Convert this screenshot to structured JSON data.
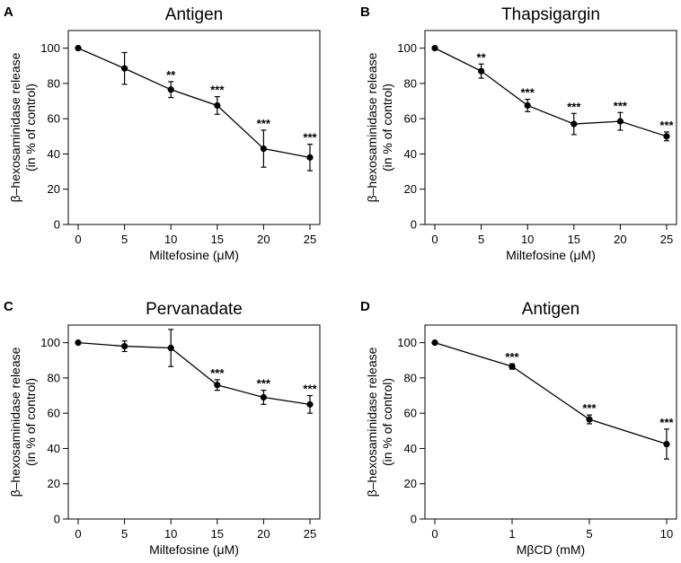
{
  "chart_data": [
    {
      "panel": "A",
      "type": "line",
      "title": "Antigen",
      "xlabel": "Miltefosine (μM)",
      "ylabel": [
        "β–hexosaminidase release",
        "(in % of control)"
      ],
      "x": [
        "0",
        "5",
        "10",
        "15",
        "20",
        "25"
      ],
      "values": [
        100,
        88.5,
        76.5,
        67.5,
        43,
        38
      ],
      "err": [
        0,
        9,
        4.5,
        5,
        10.5,
        7.5
      ],
      "sig": [
        "",
        "",
        "**",
        "***",
        "***",
        "***"
      ],
      "ylim": [
        0,
        110
      ],
      "yticks": [
        0,
        20,
        40,
        60,
        80,
        100
      ]
    },
    {
      "panel": "B",
      "type": "line",
      "title": "Thapsigargin",
      "xlabel": "Miltefosine (μM)",
      "ylabel": [
        "β–hexosaminidase release",
        "(in % of control)"
      ],
      "x": [
        "0",
        "5",
        "10",
        "15",
        "20",
        "25"
      ],
      "values": [
        100,
        87,
        67.5,
        57,
        58.5,
        50
      ],
      "err": [
        0,
        4,
        3.5,
        6,
        5,
        2.5
      ],
      "sig": [
        "",
        "**",
        "***",
        "***",
        "***",
        "***"
      ],
      "ylim": [
        0,
        110
      ],
      "yticks": [
        0,
        20,
        40,
        60,
        80,
        100
      ]
    },
    {
      "panel": "C",
      "type": "line",
      "title": "Pervanadate",
      "xlabel": "Miltefosine (μM)",
      "ylabel": [
        "β–hexosaminidase release",
        "(in % of control)"
      ],
      "x": [
        "0",
        "5",
        "10",
        "15",
        "20",
        "25"
      ],
      "values": [
        100,
        98,
        97,
        76,
        69,
        65
      ],
      "err": [
        0,
        3,
        10.5,
        3,
        4,
        5
      ],
      "sig": [
        "",
        "",
        "",
        "***",
        "***",
        "***"
      ],
      "ylim": [
        0,
        110
      ],
      "yticks": [
        0,
        20,
        40,
        60,
        80,
        100
      ]
    },
    {
      "panel": "D",
      "type": "line",
      "title": "Antigen",
      "xlabel": "MβCD (mM)",
      "ylabel": [
        "β–hexosaminidase release",
        "(in % of control)"
      ],
      "x": [
        "0",
        "1",
        "5",
        "10"
      ],
      "values": [
        100,
        86.5,
        56.5,
        42.5
      ],
      "err": [
        0,
        1.5,
        2.5,
        8.5
      ],
      "sig": [
        "",
        "***",
        "***",
        "***"
      ],
      "ylim": [
        0,
        110
      ],
      "yticks": [
        0,
        20,
        40,
        60,
        80,
        100
      ]
    }
  ]
}
